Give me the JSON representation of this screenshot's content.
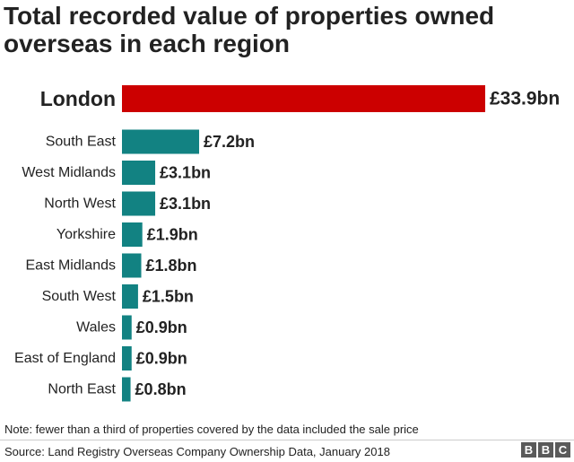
{
  "chart_data": {
    "type": "bar",
    "orientation": "horizontal",
    "title": "Total recorded value of properties owned overseas in each region",
    "categories": [
      "London",
      "South East",
      "West Midlands",
      "North West",
      "Yorkshire",
      "East Midlands",
      "South West",
      "Wales",
      "East of England",
      "North East"
    ],
    "values": [
      33.9,
      7.2,
      3.1,
      3.1,
      1.9,
      1.8,
      1.5,
      0.9,
      0.9,
      0.8
    ],
    "value_labels": [
      "£33.9bn",
      "£7.2bn",
      "£3.1bn",
      "£3.1bn",
      "£1.9bn",
      "£1.8bn",
      "£1.5bn",
      "£0.9bn",
      "£0.9bn",
      "£0.8bn"
    ],
    "highlight_category": "London",
    "colors": {
      "highlight": "#cc0000",
      "default": "#128282"
    },
    "grid": false,
    "legend": "none"
  },
  "note": "Note: fewer than a third of properties covered by the data included the sale price",
  "source": "Source: Land Registry Overseas Company Ownership Data, January 2018",
  "logo": {
    "letters": [
      "B",
      "B",
      "C"
    ]
  }
}
